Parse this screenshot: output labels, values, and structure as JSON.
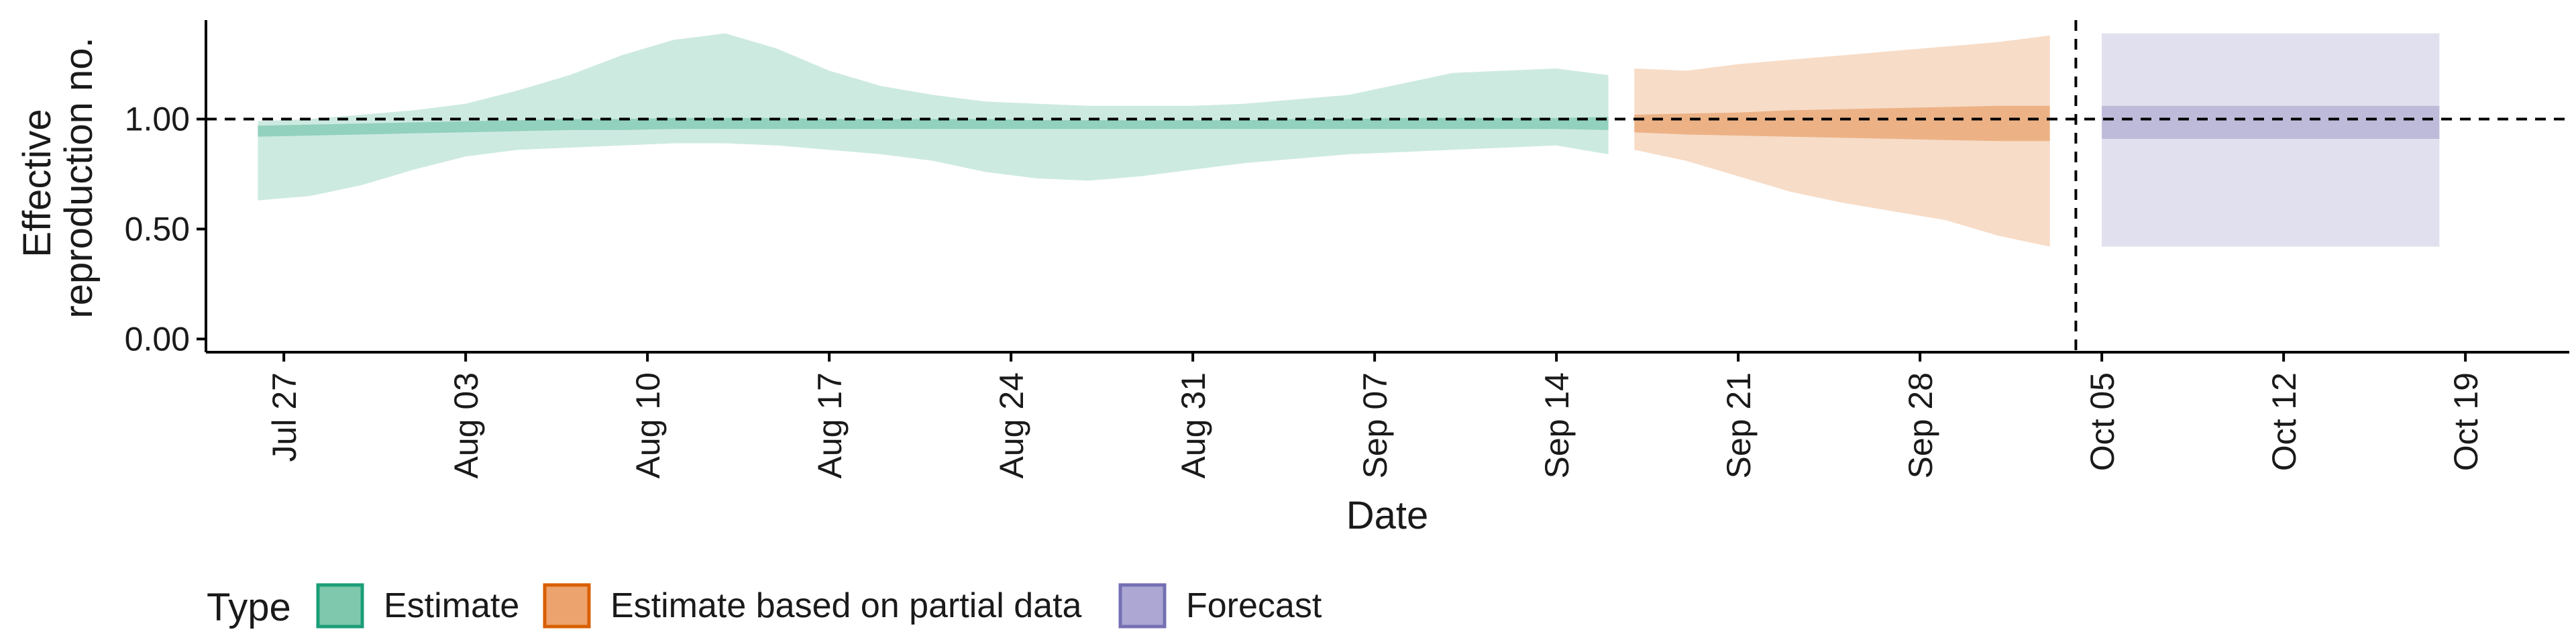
{
  "chart_data": {
    "type": "area",
    "xlabel": "Date",
    "ylabel_lines": [
      "Effective",
      "reproduction no."
    ],
    "y_ticks": [
      "0.00",
      "0.50",
      "1.00"
    ],
    "y_tick_values": [
      0,
      0.5,
      1.0
    ],
    "ylim": [
      -0.06,
      1.45
    ],
    "x_range": [
      "2020-07-24",
      "2020-10-23"
    ],
    "x_ticks": [
      {
        "date": "2020-07-27",
        "label": "Jul 27"
      },
      {
        "date": "2020-08-03",
        "label": "Aug 03"
      },
      {
        "date": "2020-08-10",
        "label": "Aug 10"
      },
      {
        "date": "2020-08-17",
        "label": "Aug 17"
      },
      {
        "date": "2020-08-24",
        "label": "Aug 24"
      },
      {
        "date": "2020-08-31",
        "label": "Aug 31"
      },
      {
        "date": "2020-09-07",
        "label": "Sep 07"
      },
      {
        "date": "2020-09-14",
        "label": "Sep 14"
      },
      {
        "date": "2020-09-21",
        "label": "Sep 21"
      },
      {
        "date": "2020-09-28",
        "label": "Sep 28"
      },
      {
        "date": "2020-10-05",
        "label": "Oct 05"
      },
      {
        "date": "2020-10-12",
        "label": "Oct 12"
      },
      {
        "date": "2020-10-19",
        "label": "Oct 19"
      }
    ],
    "reference_hline": 1.0,
    "reference_vline": "2020-10-04",
    "grid": false,
    "legend": {
      "title": "Type",
      "position": "bottom-left",
      "items": [
        {
          "label": "Estimate",
          "fill": "#7fc8ad",
          "stroke": "#1b9e77"
        },
        {
          "label": "Estimate based on partial data",
          "fill": "#eda36e",
          "stroke": "#d95f02"
        },
        {
          "label": "Forecast",
          "fill": "#ada8d3",
          "stroke": "#7570b3"
        }
      ]
    },
    "series": [
      {
        "name": "Estimate",
        "colors": {
          "outer": "#1b9e77",
          "inner": "#1b9e77"
        },
        "points": [
          {
            "date": "2020-07-26",
            "lo90": 0.63,
            "hi90": 0.99,
            "lo50": 0.92,
            "hi50": 0.97
          },
          {
            "date": "2020-07-28",
            "lo90": 0.65,
            "hi90": 1.0,
            "lo50": 0.925,
            "hi50": 0.975
          },
          {
            "date": "2020-07-30",
            "lo90": 0.7,
            "hi90": 1.02,
            "lo50": 0.93,
            "hi50": 0.98
          },
          {
            "date": "2020-08-01",
            "lo90": 0.77,
            "hi90": 1.04,
            "lo50": 0.935,
            "hi50": 0.985
          },
          {
            "date": "2020-08-03",
            "lo90": 0.83,
            "hi90": 1.07,
            "lo50": 0.94,
            "hi50": 0.99
          },
          {
            "date": "2020-08-05",
            "lo90": 0.86,
            "hi90": 1.13,
            "lo50": 0.945,
            "hi50": 0.995
          },
          {
            "date": "2020-08-07",
            "lo90": 0.87,
            "hi90": 1.2,
            "lo50": 0.95,
            "hi50": 1.0
          },
          {
            "date": "2020-08-09",
            "lo90": 0.88,
            "hi90": 1.29,
            "lo50": 0.95,
            "hi50": 1.0
          },
          {
            "date": "2020-08-11",
            "lo90": 0.89,
            "hi90": 1.36,
            "lo50": 0.955,
            "hi50": 1.005
          },
          {
            "date": "2020-08-13",
            "lo90": 0.89,
            "hi90": 1.39,
            "lo50": 0.955,
            "hi50": 1.005
          },
          {
            "date": "2020-08-15",
            "lo90": 0.88,
            "hi90": 1.32,
            "lo50": 0.955,
            "hi50": 1.005
          },
          {
            "date": "2020-08-17",
            "lo90": 0.86,
            "hi90": 1.22,
            "lo50": 0.955,
            "hi50": 1.0
          },
          {
            "date": "2020-08-19",
            "lo90": 0.84,
            "hi90": 1.15,
            "lo50": 0.955,
            "hi50": 1.0
          },
          {
            "date": "2020-08-21",
            "lo90": 0.81,
            "hi90": 1.11,
            "lo50": 0.955,
            "hi50": 1.0
          },
          {
            "date": "2020-08-23",
            "lo90": 0.76,
            "hi90": 1.08,
            "lo50": 0.955,
            "hi50": 1.0
          },
          {
            "date": "2020-08-25",
            "lo90": 0.73,
            "hi90": 1.07,
            "lo50": 0.955,
            "hi50": 0.995
          },
          {
            "date": "2020-08-27",
            "lo90": 0.72,
            "hi90": 1.06,
            "lo50": 0.955,
            "hi50": 0.995
          },
          {
            "date": "2020-08-29",
            "lo90": 0.74,
            "hi90": 1.06,
            "lo50": 0.955,
            "hi50": 0.995
          },
          {
            "date": "2020-08-31",
            "lo90": 0.77,
            "hi90": 1.06,
            "lo50": 0.955,
            "hi50": 0.995
          },
          {
            "date": "2020-09-02",
            "lo90": 0.8,
            "hi90": 1.07,
            "lo50": 0.955,
            "hi50": 0.995
          },
          {
            "date": "2020-09-04",
            "lo90": 0.82,
            "hi90": 1.09,
            "lo50": 0.955,
            "hi50": 1.0
          },
          {
            "date": "2020-09-06",
            "lo90": 0.84,
            "hi90": 1.11,
            "lo50": 0.955,
            "hi50": 1.0
          },
          {
            "date": "2020-09-08",
            "lo90": 0.85,
            "hi90": 1.16,
            "lo50": 0.955,
            "hi50": 1.005
          },
          {
            "date": "2020-09-10",
            "lo90": 0.86,
            "hi90": 1.21,
            "lo50": 0.955,
            "hi50": 1.005
          },
          {
            "date": "2020-09-12",
            "lo90": 0.87,
            "hi90": 1.22,
            "lo50": 0.955,
            "hi50": 1.005
          },
          {
            "date": "2020-09-14",
            "lo90": 0.88,
            "hi90": 1.23,
            "lo50": 0.955,
            "hi50": 1.005
          },
          {
            "date": "2020-09-16",
            "lo90": 0.84,
            "hi90": 1.2,
            "lo50": 0.95,
            "hi50": 1.01
          }
        ]
      },
      {
        "name": "Estimate based on partial data",
        "colors": {
          "outer": "#d95f02",
          "inner": "#d95f02"
        },
        "points": [
          {
            "date": "2020-09-17",
            "lo90": 0.86,
            "hi90": 1.23,
            "lo50": 0.94,
            "hi50": 1.02
          },
          {
            "date": "2020-09-19",
            "lo90": 0.81,
            "hi90": 1.22,
            "lo50": 0.93,
            "hi50": 1.025
          },
          {
            "date": "2020-09-21",
            "lo90": 0.74,
            "hi90": 1.25,
            "lo50": 0.925,
            "hi50": 1.03
          },
          {
            "date": "2020-09-23",
            "lo90": 0.67,
            "hi90": 1.27,
            "lo50": 0.92,
            "hi50": 1.04
          },
          {
            "date": "2020-09-25",
            "lo90": 0.62,
            "hi90": 1.29,
            "lo50": 0.915,
            "hi50": 1.045
          },
          {
            "date": "2020-09-27",
            "lo90": 0.58,
            "hi90": 1.31,
            "lo50": 0.91,
            "hi50": 1.05
          },
          {
            "date": "2020-09-29",
            "lo90": 0.54,
            "hi90": 1.33,
            "lo50": 0.905,
            "hi50": 1.055
          },
          {
            "date": "2020-10-01",
            "lo90": 0.47,
            "hi90": 1.35,
            "lo50": 0.9,
            "hi50": 1.06
          },
          {
            "date": "2020-10-03",
            "lo90": 0.42,
            "hi90": 1.38,
            "lo50": 0.9,
            "hi50": 1.06
          }
        ]
      },
      {
        "name": "Forecast",
        "colors": {
          "outer": "#7570b3",
          "inner": "#7570b3"
        },
        "points": [
          {
            "date": "2020-10-05",
            "lo90": 0.42,
            "hi90": 1.39,
            "lo50": 0.91,
            "hi50": 1.06
          },
          {
            "date": "2020-10-18",
            "lo90": 0.42,
            "hi90": 1.39,
            "lo50": 0.91,
            "hi50": 1.06
          }
        ]
      }
    ]
  }
}
